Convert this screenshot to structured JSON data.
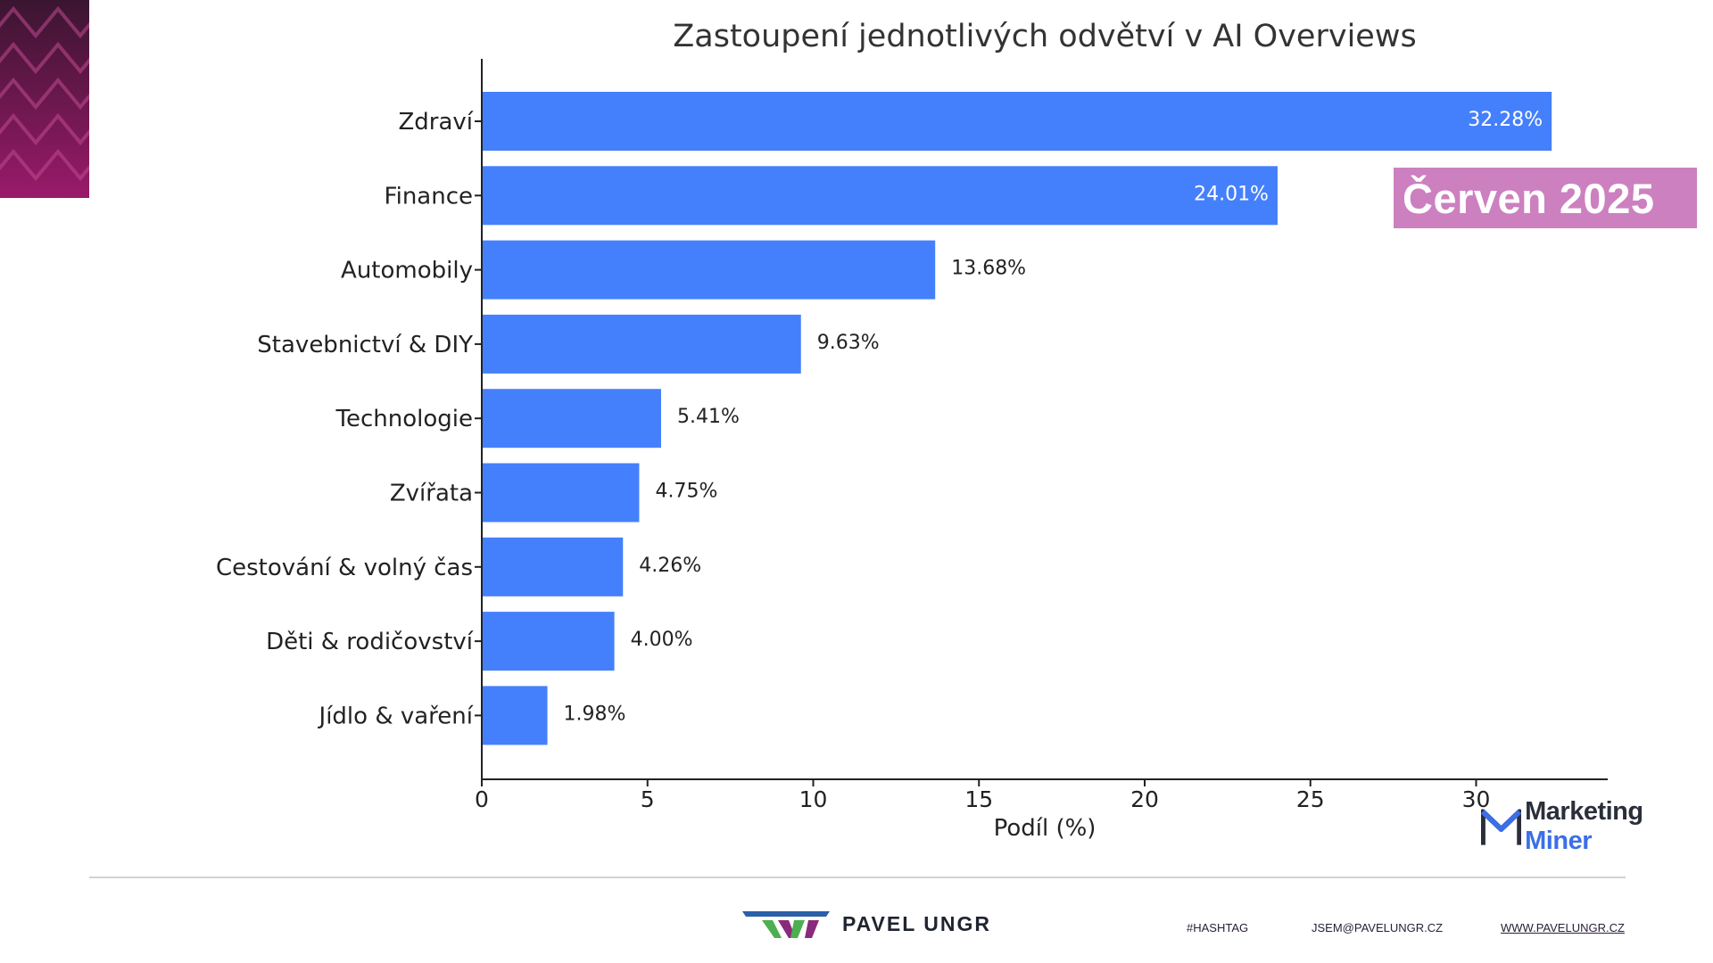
{
  "chart_data": {
    "type": "bar",
    "orientation": "horizontal",
    "title": "Zastoupení jednotlivých odvětví v AI Overviews",
    "xlabel": "Podíl (%)",
    "ylabel": "",
    "xlim": [
      0,
      34
    ],
    "xticks": [
      0,
      5,
      10,
      15,
      20,
      25,
      30
    ],
    "categories": [
      "Zdraví",
      "Finance",
      "Automobily",
      "Stavebnictví & DIY",
      "Technologie",
      "Zvířata",
      "Cestování & volný čas",
      "Děti & rodičovství",
      "Jídlo & vaření"
    ],
    "values": [
      32.28,
      24.01,
      13.68,
      9.63,
      5.41,
      4.75,
      4.26,
      4.0,
      1.98
    ],
    "value_labels": [
      "32.28%",
      "24.01%",
      "13.68%",
      "9.63%",
      "5.41%",
      "4.75%",
      "4.26%",
      "4.00%",
      "1.98%"
    ],
    "bar_color": "#4580fc",
    "grid": false,
    "legend": "none"
  },
  "badge": {
    "text": "Červen 2025",
    "color": "#cc80c0"
  },
  "watermark": {
    "word1": "Marketing",
    "word2": "Miner"
  },
  "footer": {
    "brand": "PAVEL UNGR",
    "hashtag": "#HASHTAG",
    "email": "JSEM@PAVELUNGR.CZ",
    "website": "WWW.PAVELUNGR.CZ"
  },
  "colors": {
    "accent_purple": "#7a1f5c",
    "logo_blue": "#2b5fa8",
    "logo_green": "#4caf50",
    "logo_purple": "#8a2a7a"
  }
}
